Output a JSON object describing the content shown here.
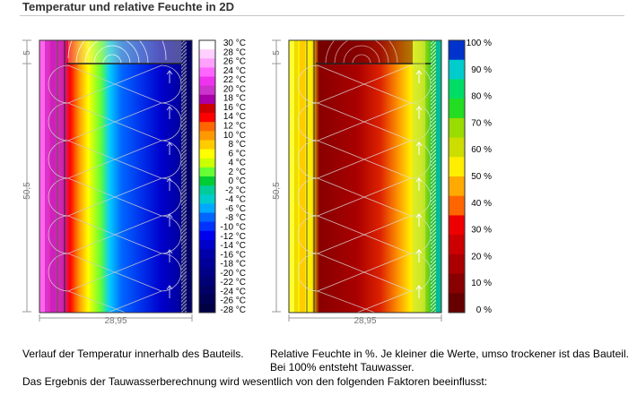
{
  "page": {
    "title": "Temperatur und relative Feuchte in 2D",
    "caption_left": "Verlauf der Temperatur innerhalb des Bauteils.",
    "caption_right": "Relative Feuchte in %. Je kleiner die Werte, umso trockener ist das Bauteil. Bei 100% entsteht Tauwasser.",
    "caption_bottom": "Das Ergebnis der Tauwasserberechnung wird wesentlich von den folgenden Faktoren beeinflusst:"
  },
  "dimensions": {
    "top_small": "5",
    "height": "50,5",
    "width": "28,95"
  },
  "temperature_legend": {
    "labels": [
      "30 °C",
      "28 °C",
      "26 °C",
      "24 °C",
      "22 °C",
      "20 °C",
      "18 °C",
      "16 °C",
      "14 °C",
      "12 °C",
      "10 °C",
      "8 °C",
      "6 °C",
      "4 °C",
      "2 °C",
      "0 °C",
      "-2 °C",
      "-4 °C",
      "-6 °C",
      "-8 °C",
      "-10 °C",
      "-12 °C",
      "-14 °C",
      "-16 °C",
      "-18 °C",
      "-20 °C",
      "-22 °C",
      "-24 °C",
      "-26 °C",
      "-28 °C"
    ],
    "colors": [
      "#ffffff",
      "#ffd0ff",
      "#ffa0ff",
      "#ff66ff",
      "#ee33ee",
      "#cc33cc",
      "#aa00aa",
      "#cc0000",
      "#ff0000",
      "#ff6600",
      "#ff9900",
      "#ffcc00",
      "#ffff00",
      "#ccff00",
      "#66ff33",
      "#00cc33",
      "#00cc99",
      "#00cccc",
      "#00aaff",
      "#0066ff",
      "#0033ff",
      "#0000ee",
      "#0000cc",
      "#0000aa",
      "#000099",
      "#000088",
      "#000077",
      "#000066",
      "#000055",
      "#000044"
    ]
  },
  "humidity_legend": {
    "labels": [
      "100 %",
      "90 %",
      "80 %",
      "70 %",
      "60 %",
      "50 %",
      "40 %",
      "30 %",
      "20 %",
      "10 %",
      "0 %"
    ],
    "colors": [
      "#0033cc",
      "#00cccc",
      "#00dd66",
      "#22dd22",
      "#99dd00",
      "#ccdd00",
      "#ffee00",
      "#ffaa00",
      "#ff6600",
      "#ee0000",
      "#cc0000",
      "#aa0000",
      "#880000",
      "#660000"
    ]
  }
}
